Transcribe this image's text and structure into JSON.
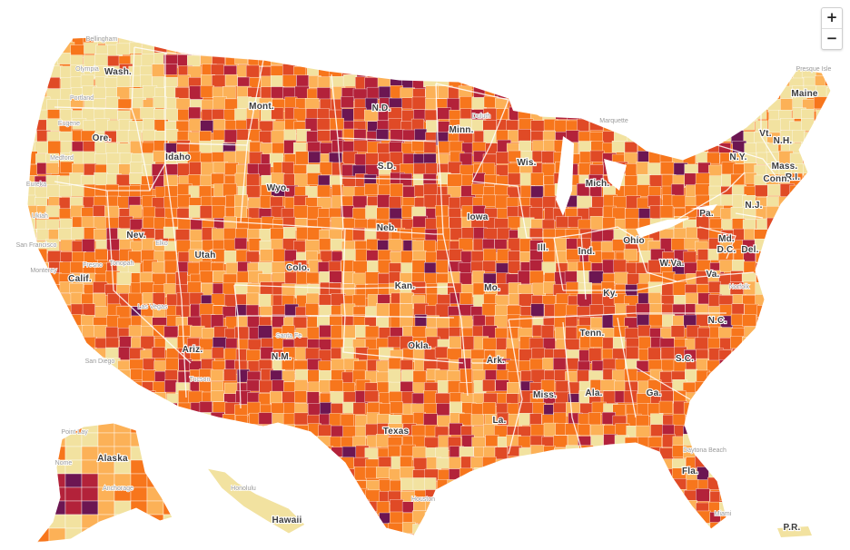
{
  "map": {
    "colors": {
      "very_low": "#f2e2a0",
      "low": "#fcb157",
      "moderate": "#f7761c",
      "high": "#e04a26",
      "very_high": "#b3223a",
      "extremely_high": "#6c1652",
      "borders": "#ffffff"
    },
    "state_labels": [
      "Wash.",
      "Ore.",
      "Idaho",
      "Mont.",
      "Wyo.",
      "N.D.",
      "S.D.",
      "Neb.",
      "Minn.",
      "Iowa",
      "Wis.",
      "Mich.",
      "Calif.",
      "Nev.",
      "Utah",
      "Colo.",
      "Kan.",
      "Mo.",
      "Ill.",
      "Ind.",
      "Ohio",
      "Pa.",
      "N.Y.",
      "Vt.",
      "N.H.",
      "Maine",
      "Mass.",
      "R.I.",
      "Conn.",
      "N.J.",
      "Del.",
      "D.C.",
      "Md.",
      "W.Va.",
      "Va.",
      "Ky.",
      "Tenn.",
      "N.C.",
      "S.C.",
      "Ga.",
      "Ala.",
      "Miss.",
      "Ark.",
      "La.",
      "Texas",
      "Okla.",
      "N.M.",
      "Ariz.",
      "Fla.",
      "Alaska",
      "Hawaii",
      "P.R."
    ],
    "city_labels": [
      "Bellingham",
      "Olympia",
      "Portland",
      "Eugene",
      "Medford",
      "Eureka",
      "Ukiah",
      "San Francisco",
      "Monterey",
      "Fresno",
      "Las Vegas",
      "Elko",
      "Tonopah",
      "San Diego",
      "Tucson",
      "Santa Fe",
      "Duluth",
      "Marquette",
      "Presque Isle",
      "Norfolk",
      "Daytona Beach",
      "Miami",
      "Houston",
      "Point Lay",
      "Nome",
      "Anchorage",
      "Honolulu"
    ]
  },
  "controls": {
    "zoom_in": "+",
    "zoom_out": "−"
  }
}
